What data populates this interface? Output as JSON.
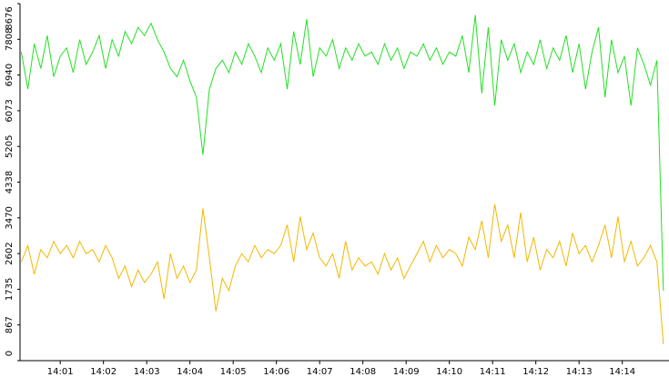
{
  "chart_data": {
    "type": "line",
    "x": [
      840.1,
      840.25,
      840.4,
      840.55,
      840.7,
      840.85,
      841.0,
      841.15,
      841.3,
      841.45,
      841.6,
      841.75,
      841.9,
      842.05,
      842.2,
      842.35,
      842.5,
      842.65,
      842.8,
      842.95,
      843.1,
      843.25,
      843.4,
      843.55,
      843.7,
      843.85,
      844.0,
      844.15,
      844.3,
      844.45,
      844.6,
      844.75,
      844.9,
      845.05,
      845.2,
      845.35,
      845.5,
      845.65,
      845.8,
      845.95,
      846.1,
      846.25,
      846.4,
      846.55,
      846.7,
      846.85,
      847.0,
      847.15,
      847.3,
      847.45,
      847.6,
      847.75,
      847.9,
      848.05,
      848.2,
      848.35,
      848.5,
      848.65,
      848.8,
      848.95,
      849.1,
      849.25,
      849.4,
      849.55,
      849.7,
      849.85,
      850.0,
      850.15,
      850.3,
      850.45,
      850.6,
      850.75,
      850.9,
      851.05,
      851.2,
      851.35,
      851.5,
      851.65,
      851.8,
      851.95,
      852.1,
      852.25,
      852.4,
      852.55,
      852.7,
      852.85,
      853.0,
      853.15,
      853.3,
      853.45,
      853.6,
      853.75,
      853.9,
      854.05,
      854.2,
      854.35,
      854.5,
      854.65,
      854.8,
      854.95
    ],
    "series": [
      {
        "color": "#22e022",
        "values": [
          7500,
          6600,
          7700,
          7100,
          7900,
          6900,
          7400,
          7600,
          7000,
          7800,
          7200,
          7500,
          7900,
          7100,
          7800,
          7400,
          8000,
          7700,
          8100,
          7900,
          8200,
          7800,
          7500,
          7100,
          6900,
          7300,
          6800,
          6400,
          5000,
          6600,
          7100,
          7300,
          7000,
          7500,
          7200,
          7700,
          7400,
          7000,
          7600,
          7300,
          7700,
          6600,
          8000,
          7200,
          8300,
          6900,
          7600,
          7400,
          7800,
          7100,
          7600,
          7300,
          7700,
          7400,
          7500,
          7200,
          7700,
          7300,
          7600,
          7100,
          7500,
          7400,
          7700,
          7300,
          7600,
          7200,
          7500,
          7400,
          7900,
          7000,
          8400,
          6500,
          8100,
          6200,
          7800,
          7300,
          7700,
          7000,
          7500,
          7200,
          7800,
          7100,
          7600,
          7300,
          7900,
          7000,
          7700,
          6600,
          7500,
          8100,
          6400,
          7800,
          7000,
          7400,
          6200,
          7600,
          7200,
          6700,
          7300,
          1700
        ]
      },
      {
        "color": "#f2b800",
        "values": [
          2400,
          2800,
          2100,
          2700,
          2500,
          2900,
          2600,
          2800,
          2500,
          2900,
          2600,
          2700,
          2400,
          2800,
          2500,
          2000,
          2300,
          1800,
          2200,
          1900,
          2100,
          2400,
          1500,
          2600,
          2000,
          2300,
          1900,
          2200,
          3700,
          2500,
          1200,
          2000,
          1700,
          2300,
          2600,
          2400,
          2800,
          2500,
          2700,
          2600,
          2800,
          3300,
          2400,
          3500,
          2700,
          3100,
          2500,
          2300,
          2600,
          2000,
          2900,
          2200,
          2500,
          2300,
          2400,
          2100,
          2600,
          2200,
          2500,
          2000,
          2300,
          2600,
          2900,
          2400,
          2800,
          2500,
          2700,
          2600,
          2300,
          3000,
          2700,
          3400,
          2500,
          3800,
          2900,
          3300,
          2500,
          3600,
          2400,
          3000,
          2200,
          2700,
          2500,
          2900,
          2300,
          3100,
          2600,
          2800,
          2400,
          2800,
          3300,
          2500,
          3500,
          2400,
          2900,
          2300,
          2500,
          2800,
          2400,
          400
        ]
      }
    ],
    "xlim": [
      840.07,
      855.08
    ],
    "xticks": [
      {
        "value": 841,
        "label": "14:01"
      },
      {
        "value": 842,
        "label": "14:02"
      },
      {
        "value": 843,
        "label": "14:03"
      },
      {
        "value": 844,
        "label": "14:04"
      },
      {
        "value": 845,
        "label": "14:05"
      },
      {
        "value": 846,
        "label": "14:06"
      },
      {
        "value": 847,
        "label": "14:07"
      },
      {
        "value": 848,
        "label": "14:08"
      },
      {
        "value": 849,
        "label": "14:09"
      },
      {
        "value": 850,
        "label": "14:10"
      },
      {
        "value": 851,
        "label": "14:11"
      },
      {
        "value": 852,
        "label": "14:12"
      },
      {
        "value": 853,
        "label": "14:13"
      },
      {
        "value": 854,
        "label": "14:14"
      }
    ],
    "ylim": [
      0,
      8676
    ],
    "yticks": [
      0,
      867,
      1735,
      2602,
      3470,
      4338,
      5205,
      6073,
      6940,
      7808,
      8676
    ]
  }
}
